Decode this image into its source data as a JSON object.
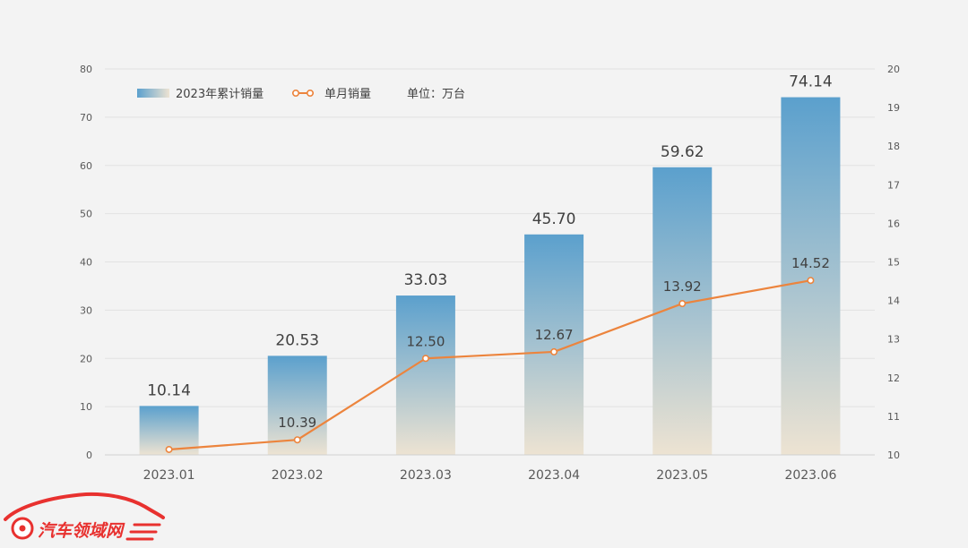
{
  "chart_data": {
    "type": "bar",
    "categories": [
      "2023.01",
      "2023.02",
      "2023.03",
      "2023.04",
      "2023.05",
      "2023.06"
    ],
    "series": [
      {
        "name": "2023年累计销量",
        "type": "bar",
        "axis": "left",
        "values": [
          10.14,
          20.53,
          33.03,
          45.7,
          59.62,
          74.14
        ],
        "labels": [
          "10.14",
          "20.53",
          "33.03",
          "45.70",
          "59.62",
          "74.14"
        ]
      },
      {
        "name": "单月销量",
        "type": "line",
        "axis": "right",
        "values": [
          10.14,
          10.39,
          12.5,
          12.67,
          13.92,
          14.52
        ],
        "labels": [
          "",
          "10.39",
          "12.50",
          "12.67",
          "13.92",
          "14.52"
        ]
      }
    ],
    "unit_note": "单位：万台",
    "ylim": [
      0,
      80
    ],
    "yticks": [
      "0",
      "10",
      "20",
      "30",
      "40",
      "50",
      "60",
      "70",
      "80"
    ],
    "y2lim": [
      10,
      20
    ],
    "y2ticks": [
      "10",
      "11",
      "12",
      "13",
      "14",
      "15",
      "16",
      "17",
      "18",
      "19",
      "20"
    ],
    "grid": true,
    "legend_position": "top-left",
    "colors": {
      "bar_top": "#5ba0cd",
      "bar_bottom": "#ede3d2",
      "line": "#ec843d",
      "marker_fill": "#ffffff",
      "grid": "#e2e2e2",
      "tick_text": "#595959",
      "label_text": "#404040",
      "background": "#f3f3f3"
    }
  },
  "watermark": {
    "text": "汽车领域网",
    "color": "#e8312f"
  }
}
